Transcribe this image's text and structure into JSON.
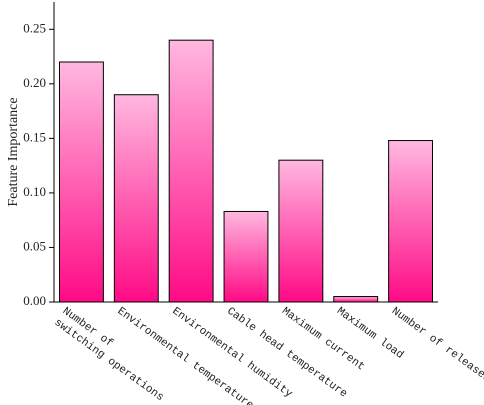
{
  "chart_data": {
    "type": "bar",
    "y_label": "Feature Importance",
    "categories": [
      "Number of switching operations",
      "Environmental temperature",
      "Environmental humidity",
      "Cable head temperature",
      "Maximum current",
      "Maximum load",
      "Number of releases"
    ],
    "values": [
      0.22,
      0.19,
      0.24,
      0.083,
      0.13,
      0.005,
      0.148
    ],
    "color": "#ff0a85",
    "gradient_top_color": "#ffb8e0",
    "ylim": [
      0,
      0.275
    ],
    "yticks": [
      {
        "value": 0,
        "label": "0.00"
      },
      {
        "value": 0.05,
        "label": "0.05"
      },
      {
        "value": 0.1,
        "label": "0.10"
      },
      {
        "value": 0.15,
        "label": "0.15"
      },
      {
        "value": 0.2,
        "label": "0.20"
      },
      {
        "value": 0.25,
        "label": "0.25"
      }
    ]
  }
}
